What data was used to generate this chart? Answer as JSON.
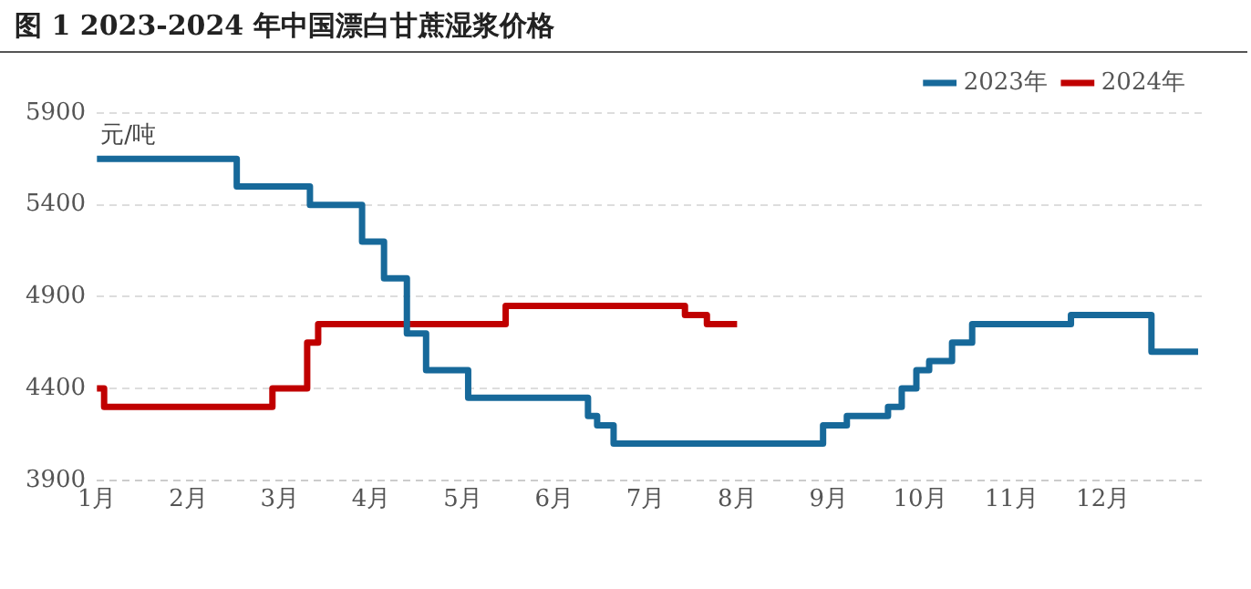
{
  "chart_data": {
    "type": "step",
    "title": "图 1 2023-2024 年中国漂白甘蔗湿浆价格",
    "ylabel": "元/吨",
    "xlim": [
      1,
      13.1
    ],
    "xticks": [
      {
        "value": 1,
        "label": "1月"
      },
      {
        "value": 2,
        "label": "2月"
      },
      {
        "value": 3,
        "label": "3月"
      },
      {
        "value": 4,
        "label": "4月"
      },
      {
        "value": 5,
        "label": "5月"
      },
      {
        "value": 6,
        "label": "6月"
      },
      {
        "value": 7,
        "label": "7月"
      },
      {
        "value": 8,
        "label": "8月"
      },
      {
        "value": 9,
        "label": "9月"
      },
      {
        "value": 10,
        "label": "10月"
      },
      {
        "value": 11,
        "label": "11月"
      },
      {
        "value": 12,
        "label": "12月"
      }
    ],
    "ylim": [
      3900,
      5900
    ],
    "yticks": [
      3900,
      4400,
      4900,
      5400,
      5900
    ],
    "grid": "y",
    "legend": "top right",
    "marker": "none",
    "line_style": "solid",
    "series": [
      {
        "name": "2023年",
        "color": "#17699a",
        "x": [
          1,
          2.53,
          3.33,
          3.9,
          4.14,
          4.39,
          4.6,
          5.06,
          6.37,
          6.47,
          6.65,
          8.94,
          9.2,
          9.65,
          9.8,
          9.96,
          10.1,
          10.35,
          10.57,
          11.65,
          12.53,
          13.04
        ],
        "values": [
          5650,
          5500,
          5400,
          5200,
          5000,
          4700,
          4500,
          4350,
          4250,
          4200,
          4100,
          4200,
          4250,
          4300,
          4400,
          4500,
          4550,
          4650,
          4750,
          4800,
          4600,
          4600
        ]
      },
      {
        "name": "2024年",
        "color": "#c00000",
        "x": [
          1,
          1.08,
          2.92,
          3.3,
          3.42,
          5.47,
          7.43,
          7.67,
          8.0
        ],
        "values": [
          4400,
          4300,
          4400,
          4650,
          4750,
          4850,
          4800,
          4750,
          4750
        ]
      }
    ]
  }
}
